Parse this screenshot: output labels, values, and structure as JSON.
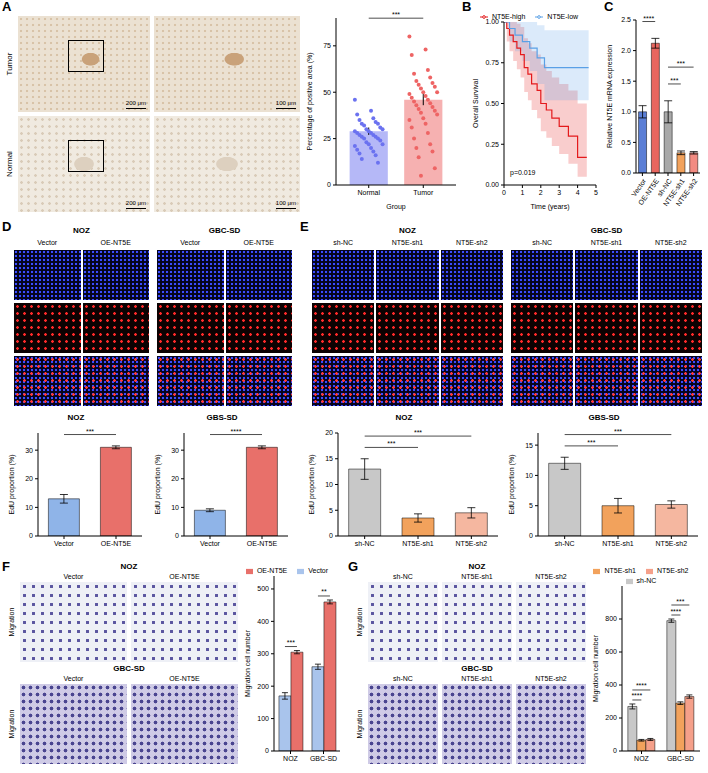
{
  "chart_data": [
    {
      "type": "bar_scatter",
      "categories": [
        "Normal",
        "Tumor"
      ],
      "values": [
        29,
        46
      ],
      "errors": [
        2,
        3
      ],
      "colors": [
        "#6b72f0",
        "#ee6464"
      ],
      "points": [
        [
          46,
          40,
          38,
          36,
          35,
          34,
          33,
          33,
          32,
          31,
          30,
          30,
          29,
          29,
          28,
          28,
          27,
          27,
          26,
          26,
          25,
          25,
          24,
          23,
          22,
          22,
          21,
          20,
          19,
          18,
          17,
          16,
          14,
          12
        ],
        [
          80,
          73,
          70,
          62,
          60,
          58,
          56,
          55,
          54,
          53,
          52,
          50,
          50,
          49,
          48,
          47,
          46,
          45,
          44,
          43,
          42,
          41,
          40,
          39,
          38,
          36,
          35,
          33,
          31,
          28,
          25,
          22,
          20,
          18,
          15,
          9,
          5
        ]
      ],
      "xlabel": "Group",
      "ylabel": "Percentage of positive area (%)",
      "ylim": [
        0,
        90
      ],
      "yticks": [
        0,
        25,
        50,
        75
      ],
      "significance": [
        {
          "from": "Normal",
          "to": "Tumor",
          "label": "***"
        }
      ]
    },
    {
      "type": "line",
      "panel": "B",
      "line_style": "step",
      "legend": "top",
      "series": [
        {
          "name": "NT5E-high",
          "color": "#e41a1c",
          "x": [
            0,
            0.15,
            0.3,
            0.5,
            0.7,
            0.9,
            1.1,
            1.3,
            1.5,
            1.8,
            2.0,
            2.3,
            2.6,
            3.0,
            3.5,
            4.0,
            4.5
          ],
          "values": [
            1,
            0.96,
            0.92,
            0.88,
            0.84,
            0.8,
            0.72,
            0.68,
            0.62,
            0.58,
            0.5,
            0.46,
            0.41,
            0.36,
            0.3,
            0.17,
            0.17
          ],
          "ci_lower": [
            1,
            0.88,
            0.82,
            0.76,
            0.71,
            0.66,
            0.57,
            0.52,
            0.46,
            0.41,
            0.33,
            0.29,
            0.24,
            0.19,
            0.13,
            0.05,
            0.05
          ],
          "ci_upper": [
            1,
            1,
            1,
            1,
            0.99,
            0.97,
            0.9,
            0.87,
            0.82,
            0.8,
            0.74,
            0.7,
            0.66,
            0.62,
            0.58,
            0.5,
            0.5
          ]
        },
        {
          "name": "NT5E-low",
          "color": "#5aa0e6",
          "x": [
            0,
            0.3,
            0.6,
            1.0,
            1.4,
            1.8,
            2.2,
            4.6
          ],
          "values": [
            1,
            0.96,
            0.92,
            0.88,
            0.84,
            0.78,
            0.72,
            0.72
          ],
          "ci_lower": [
            1,
            0.88,
            0.82,
            0.76,
            0.7,
            0.62,
            0.52,
            0.52
          ],
          "ci_upper": [
            1,
            1,
            1,
            1,
            1,
            0.98,
            0.95,
            0.95
          ]
        }
      ],
      "xlabel": "Time (years)",
      "ylabel": "Overall Survival",
      "xlim": [
        0,
        5
      ],
      "xticks": [
        0,
        1,
        2,
        3,
        4,
        5
      ],
      "ylim": [
        0,
        1
      ],
      "yticks": [
        {
          "value": 0,
          "label": "0.00"
        },
        {
          "value": 0.25,
          "label": "0.25"
        },
        {
          "value": 0.5,
          "label": "0.50"
        },
        {
          "value": 0.75,
          "label": "0.75"
        },
        {
          "value": 1,
          "label": "1.00"
        }
      ],
      "annotations": [
        "p=0.019"
      ]
    },
    {
      "type": "bar",
      "panel": "C",
      "categories": [
        "Vector",
        "OE-NT5E",
        "sh-NC",
        "NT5E-sh1",
        "NT5E-sh2"
      ],
      "values": [
        1.0,
        2.12,
        1.0,
        0.33,
        0.33
      ],
      "errors": [
        0.1,
        0.08,
        0.18,
        0.03,
        0.02
      ],
      "colors": [
        "#5b7fd6",
        "#e8665f",
        "#a9a9a9",
        "#f2a25c",
        "#f28b82"
      ],
      "ylabel": "Relative NT5E mRNA expression",
      "ylim": [
        0,
        2.5
      ],
      "yticks": [
        {
          "value": 0,
          "label": "0.0"
        },
        0.5,
        {
          "value": 1,
          "label": "1.0"
        },
        1.5,
        {
          "value": 2,
          "label": "2.0"
        },
        2.5
      ],
      "significance": [
        {
          "from": "Vector",
          "to": "OE-NT5E",
          "label": "****"
        },
        {
          "from": "sh-NC",
          "to": "NT5E-sh1",
          "label": "***"
        },
        {
          "from": "sh-NC",
          "to": "NT5E-sh2",
          "label": "***"
        }
      ]
    },
    {
      "type": "bar",
      "title": "NOZ",
      "categories": [
        "Vector",
        "OE-NT5E"
      ],
      "values": [
        13,
        31
      ],
      "errors": [
        1.5,
        0.5
      ],
      "colors": [
        "#8fb4e8",
        "#e8706a"
      ],
      "ylabel": "EdU proportion (%)",
      "ylim": [
        0,
        36
      ],
      "yticks": [
        0,
        10,
        20,
        30
      ],
      "significance": [
        {
          "from": "Vector",
          "to": "OE-NT5E",
          "label": "***"
        }
      ]
    },
    {
      "type": "bar",
      "title": "GBS-SD",
      "categories": [
        "Vector",
        "OE-NT5E"
      ],
      "values": [
        9,
        31
      ],
      "errors": [
        0.5,
        0.5
      ],
      "colors": [
        "#8fb4e8",
        "#e8706a"
      ],
      "ylabel": "EdU proportion (%)",
      "ylim": [
        0,
        36
      ],
      "yticks": [
        0,
        10,
        20,
        30
      ],
      "significance": [
        {
          "from": "Vector",
          "to": "OE-NT5E",
          "label": "****"
        }
      ]
    },
    {
      "type": "bar",
      "title": "NOZ",
      "categories": [
        "sh-NC",
        "NT5E-sh1",
        "NT5E-sh2"
      ],
      "values": [
        13,
        3.5,
        4.5
      ],
      "errors": [
        2,
        0.8,
        1
      ],
      "colors": [
        "#c8c8c8",
        "#f2a25c",
        "#f5b7a0"
      ],
      "ylabel": "EdU proportion (%)",
      "ylim": [
        0,
        20
      ],
      "yticks": [
        0,
        5,
        10,
        15,
        20
      ],
      "significance": [
        {
          "from": "sh-NC",
          "to": "NT5E-sh1",
          "label": "***"
        },
        {
          "from": "sh-NC",
          "to": "NT5E-sh2",
          "label": "***"
        }
      ]
    },
    {
      "type": "bar",
      "title": "GBS-SD",
      "categories": [
        "sh-NC",
        "NT5E-sh1",
        "NT5E-sh2"
      ],
      "values": [
        12,
        5,
        5.2
      ],
      "errors": [
        1,
        1.2,
        0.6
      ],
      "colors": [
        "#c8c8c8",
        "#f2a25c",
        "#f5b7a0"
      ],
      "ylabel": "EdU proportion (%)",
      "ylim": [
        0,
        17
      ],
      "yticks": [
        0,
        5,
        10,
        15
      ],
      "significance": [
        {
          "from": "sh-NC",
          "to": "NT5E-sh1",
          "label": "***"
        },
        {
          "from": "sh-NC",
          "to": "NT5E-sh2",
          "label": "***"
        }
      ]
    },
    {
      "type": "grouped_bar",
      "legend": "top",
      "categories": [
        "NOZ",
        "GBC-SD"
      ],
      "series": [
        {
          "name": "Vector",
          "color": "#a9c4ec",
          "values": [
            170,
            260
          ],
          "errors": [
            10,
            8
          ]
        },
        {
          "name": "OE-NT5E",
          "color": "#e8706a",
          "values": [
            305,
            460
          ],
          "errors": [
            5,
            6
          ],
          "significance": [
            "***",
            "**"
          ]
        }
      ],
      "ylabel": "Migration cell number",
      "ylim": [
        0,
        540
      ],
      "yticks": [
        0,
        100,
        200,
        300,
        400,
        500
      ]
    },
    {
      "type": "grouped_bar",
      "legend": "top",
      "categories": [
        "NOZ",
        "GBC-SD"
      ],
      "series": [
        {
          "name": "sh-NC",
          "color": "#c8c8c8",
          "values": [
            270,
            790
          ],
          "errors": [
            15,
            10
          ]
        },
        {
          "name": "NT5E-sh1",
          "color": "#f2a25c",
          "values": [
            65,
            290
          ],
          "errors": [
            5,
            8
          ],
          "significance": [
            "****",
            "****"
          ]
        },
        {
          "name": "NT5E-sh2",
          "color": "#f5a08a",
          "values": [
            70,
            330
          ],
          "errors": [
            6,
            10
          ],
          "significance": [
            "****",
            "***"
          ]
        }
      ],
      "ylabel": "Migration cell number",
      "ylim": [
        0,
        1000
      ],
      "yticks": [
        0,
        200,
        400,
        600,
        800
      ]
    }
  ],
  "image_panels": [
    {
      "panel": "A",
      "rows": [
        "Tumor",
        "Normal"
      ],
      "scale_bars": [
        "200 μm",
        "100 μm"
      ]
    },
    {
      "panel": "D",
      "groups": [
        {
          "name": "NOZ",
          "columns": [
            "Vector",
            "OE-NT5E"
          ]
        },
        {
          "name": "GBC-SD",
          "columns": [
            "Vector",
            "OE-NT5E"
          ]
        }
      ]
    },
    {
      "panel": "E",
      "groups": [
        {
          "name": "NOZ",
          "columns": [
            "sh-NC",
            "NT5E-sh1",
            "NT5E-sh2"
          ]
        },
        {
          "name": "GBC-SD",
          "columns": [
            "sh-NC",
            "NT5E-sh1",
            "NT5E-sh2"
          ]
        }
      ]
    },
    {
      "panel": "F",
      "row_label": "Migration",
      "groups": [
        {
          "name": "NOZ",
          "columns": [
            "Vector",
            "OE-NT5E"
          ]
        },
        {
          "name": "GBC-SD",
          "columns": [
            "Vector",
            "OE-NT5E"
          ]
        }
      ]
    },
    {
      "panel": "G",
      "row_label": "Migration",
      "groups": [
        {
          "name": "NOZ",
          "columns": [
            "sh-NC",
            "NT5E-sh1",
            "NT5E-sh2"
          ]
        },
        {
          "name": "GBC-SD",
          "columns": [
            "sh-NC",
            "NT5E-sh1",
            "NT5E-sh2"
          ]
        }
      ]
    }
  ]
}
